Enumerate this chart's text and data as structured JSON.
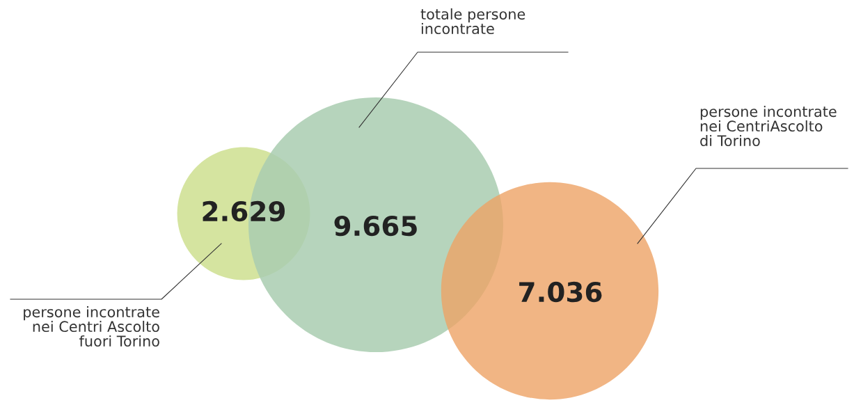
{
  "chart_data": {
    "type": "other",
    "categories": [
      "persone incontrate\nnei Centri Ascolto\nfuori Torino",
      "totale persone\nincontrate",
      "persone incontrate\nnei CentriAscolto\ndi Torino"
    ],
    "values": [
      2629,
      9665,
      7036
    ],
    "value_labels": [
      "2.629",
      "9.665",
      "7.036"
    ],
    "colors": [
      "#d5e4a0",
      "#a9cdb0",
      "#eda365"
    ]
  }
}
